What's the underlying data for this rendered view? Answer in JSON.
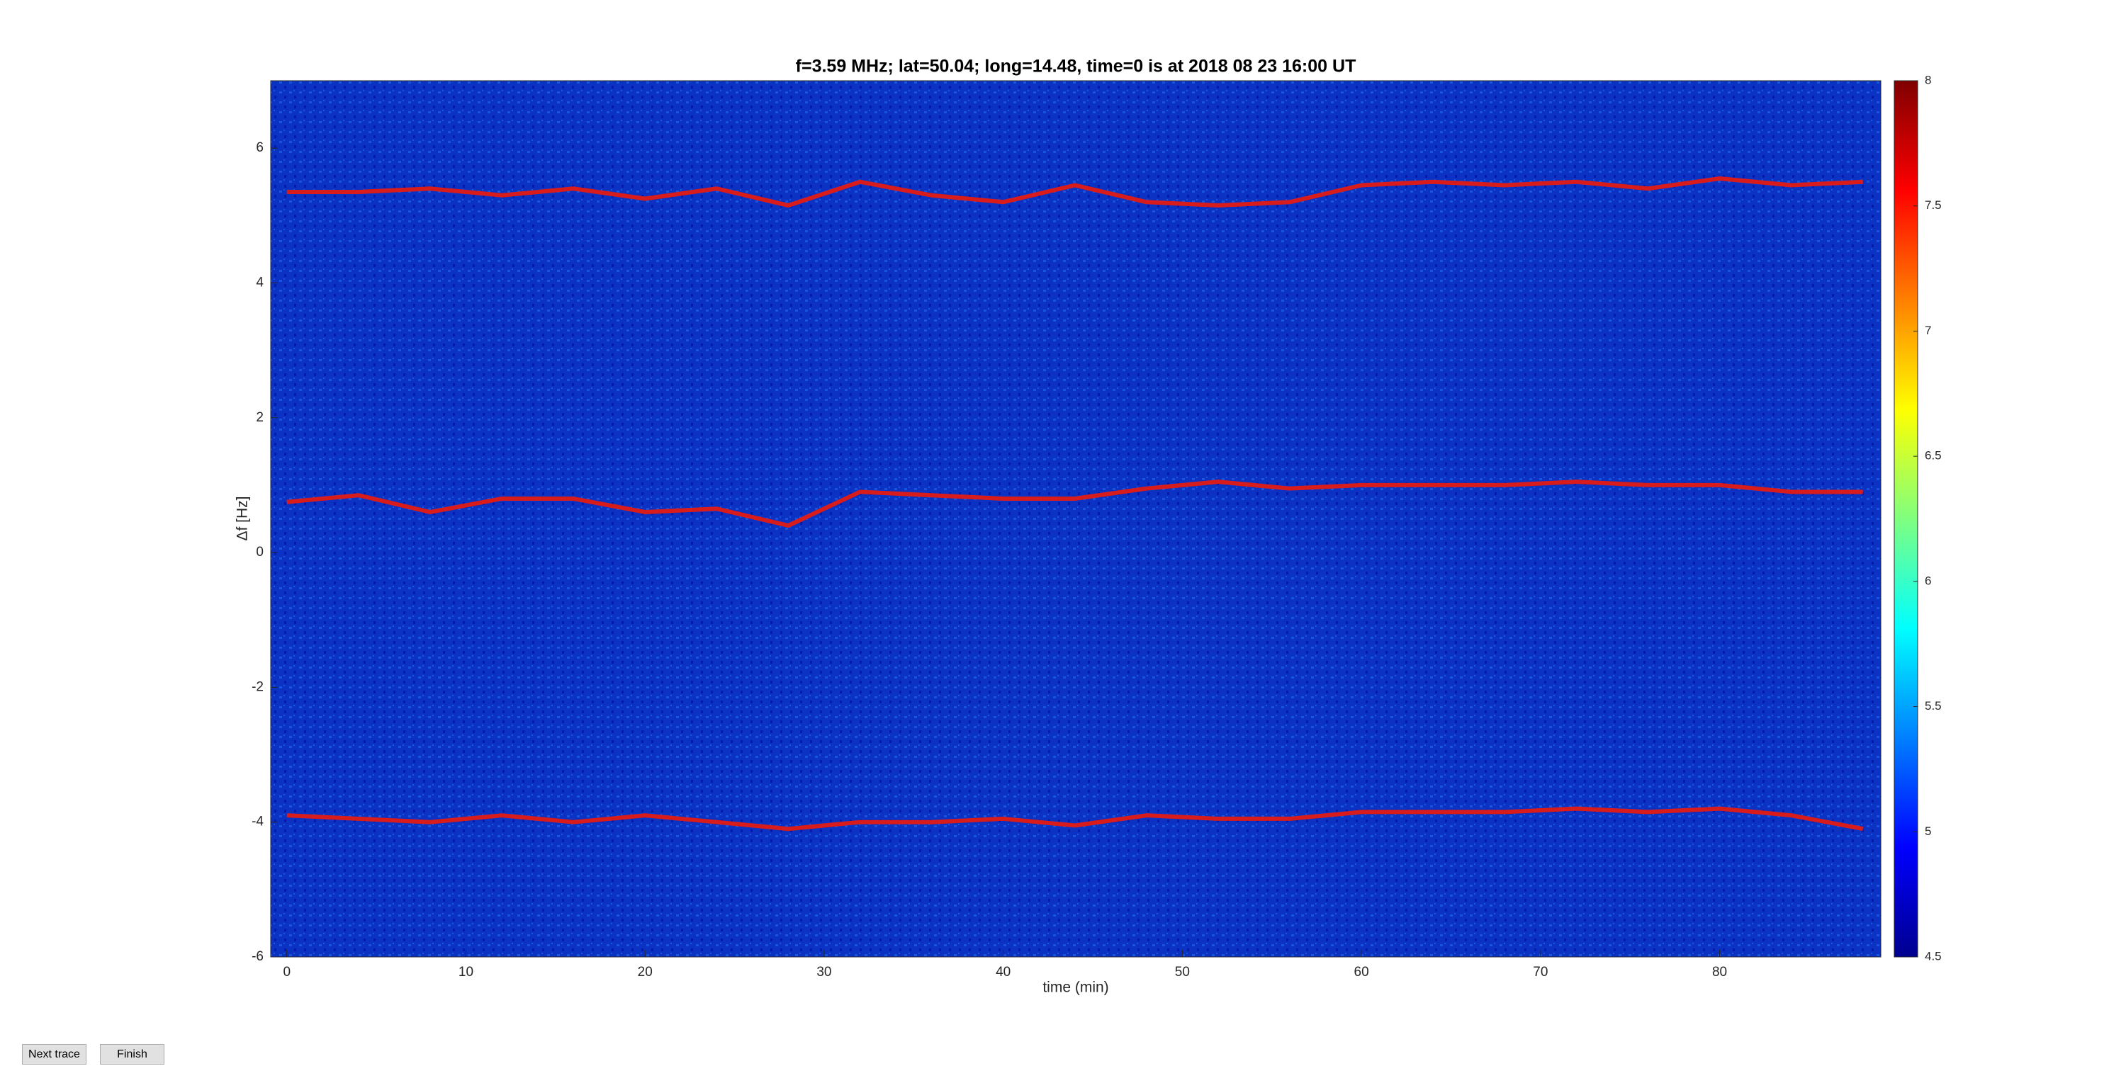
{
  "chart_data": {
    "type": "line",
    "title": "f=3.59 MHz;  lat=50.04; long=14.48, time=0 is at 2018 08 23 16:00 UT",
    "xlabel": "time (min)",
    "ylabel": "Δf [Hz]",
    "x": [
      0,
      4,
      8,
      12,
      16,
      20,
      24,
      28,
      32,
      36,
      40,
      44,
      48,
      52,
      56,
      60,
      64,
      68,
      72,
      76,
      80,
      84,
      88
    ],
    "series": [
      {
        "color": "#d81c1c",
        "values": [
          5.35,
          5.35,
          5.4,
          5.3,
          5.4,
          5.25,
          5.4,
          5.15,
          5.5,
          5.3,
          5.2,
          5.45,
          5.2,
          5.15,
          5.2,
          5.45,
          5.5,
          5.45,
          5.5,
          5.4,
          5.55,
          5.45,
          5.5
        ]
      },
      {
        "color": "#d81c1c",
        "values": [
          0.75,
          0.85,
          0.6,
          0.8,
          0.8,
          0.6,
          0.65,
          0.4,
          0.9,
          0.85,
          0.8,
          0.8,
          0.95,
          1.05,
          0.95,
          1.0,
          1.0,
          1.0,
          1.05,
          1.0,
          1.0,
          0.9,
          0.9
        ]
      },
      {
        "color": "#d81c1c",
        "values": [
          -3.9,
          -3.95,
          -4.0,
          -3.9,
          -4.0,
          -3.9,
          -4.0,
          -4.1,
          -4.0,
          -4.0,
          -3.95,
          -4.05,
          -3.9,
          -3.95,
          -3.95,
          -3.85,
          -3.85,
          -3.85,
          -3.8,
          -3.85,
          -3.8,
          -3.9,
          -4.1
        ]
      }
    ],
    "xlim": [
      -0.9,
      89
    ],
    "xticks": [
      0,
      10,
      20,
      30,
      40,
      50,
      60,
      70,
      80
    ],
    "ylim": [
      -6,
      7
    ],
    "yticks": [
      -6,
      -4,
      -2,
      0,
      2,
      4,
      6
    ],
    "colorbar_lim": [
      4.5,
      8
    ],
    "colorbar_ticks": [
      4.5,
      5,
      5.5,
      6,
      6.5,
      7,
      7.5,
      8
    ],
    "background_color": "#0c32c4"
  },
  "buttons": [
    "Next trace",
    "Finish"
  ]
}
